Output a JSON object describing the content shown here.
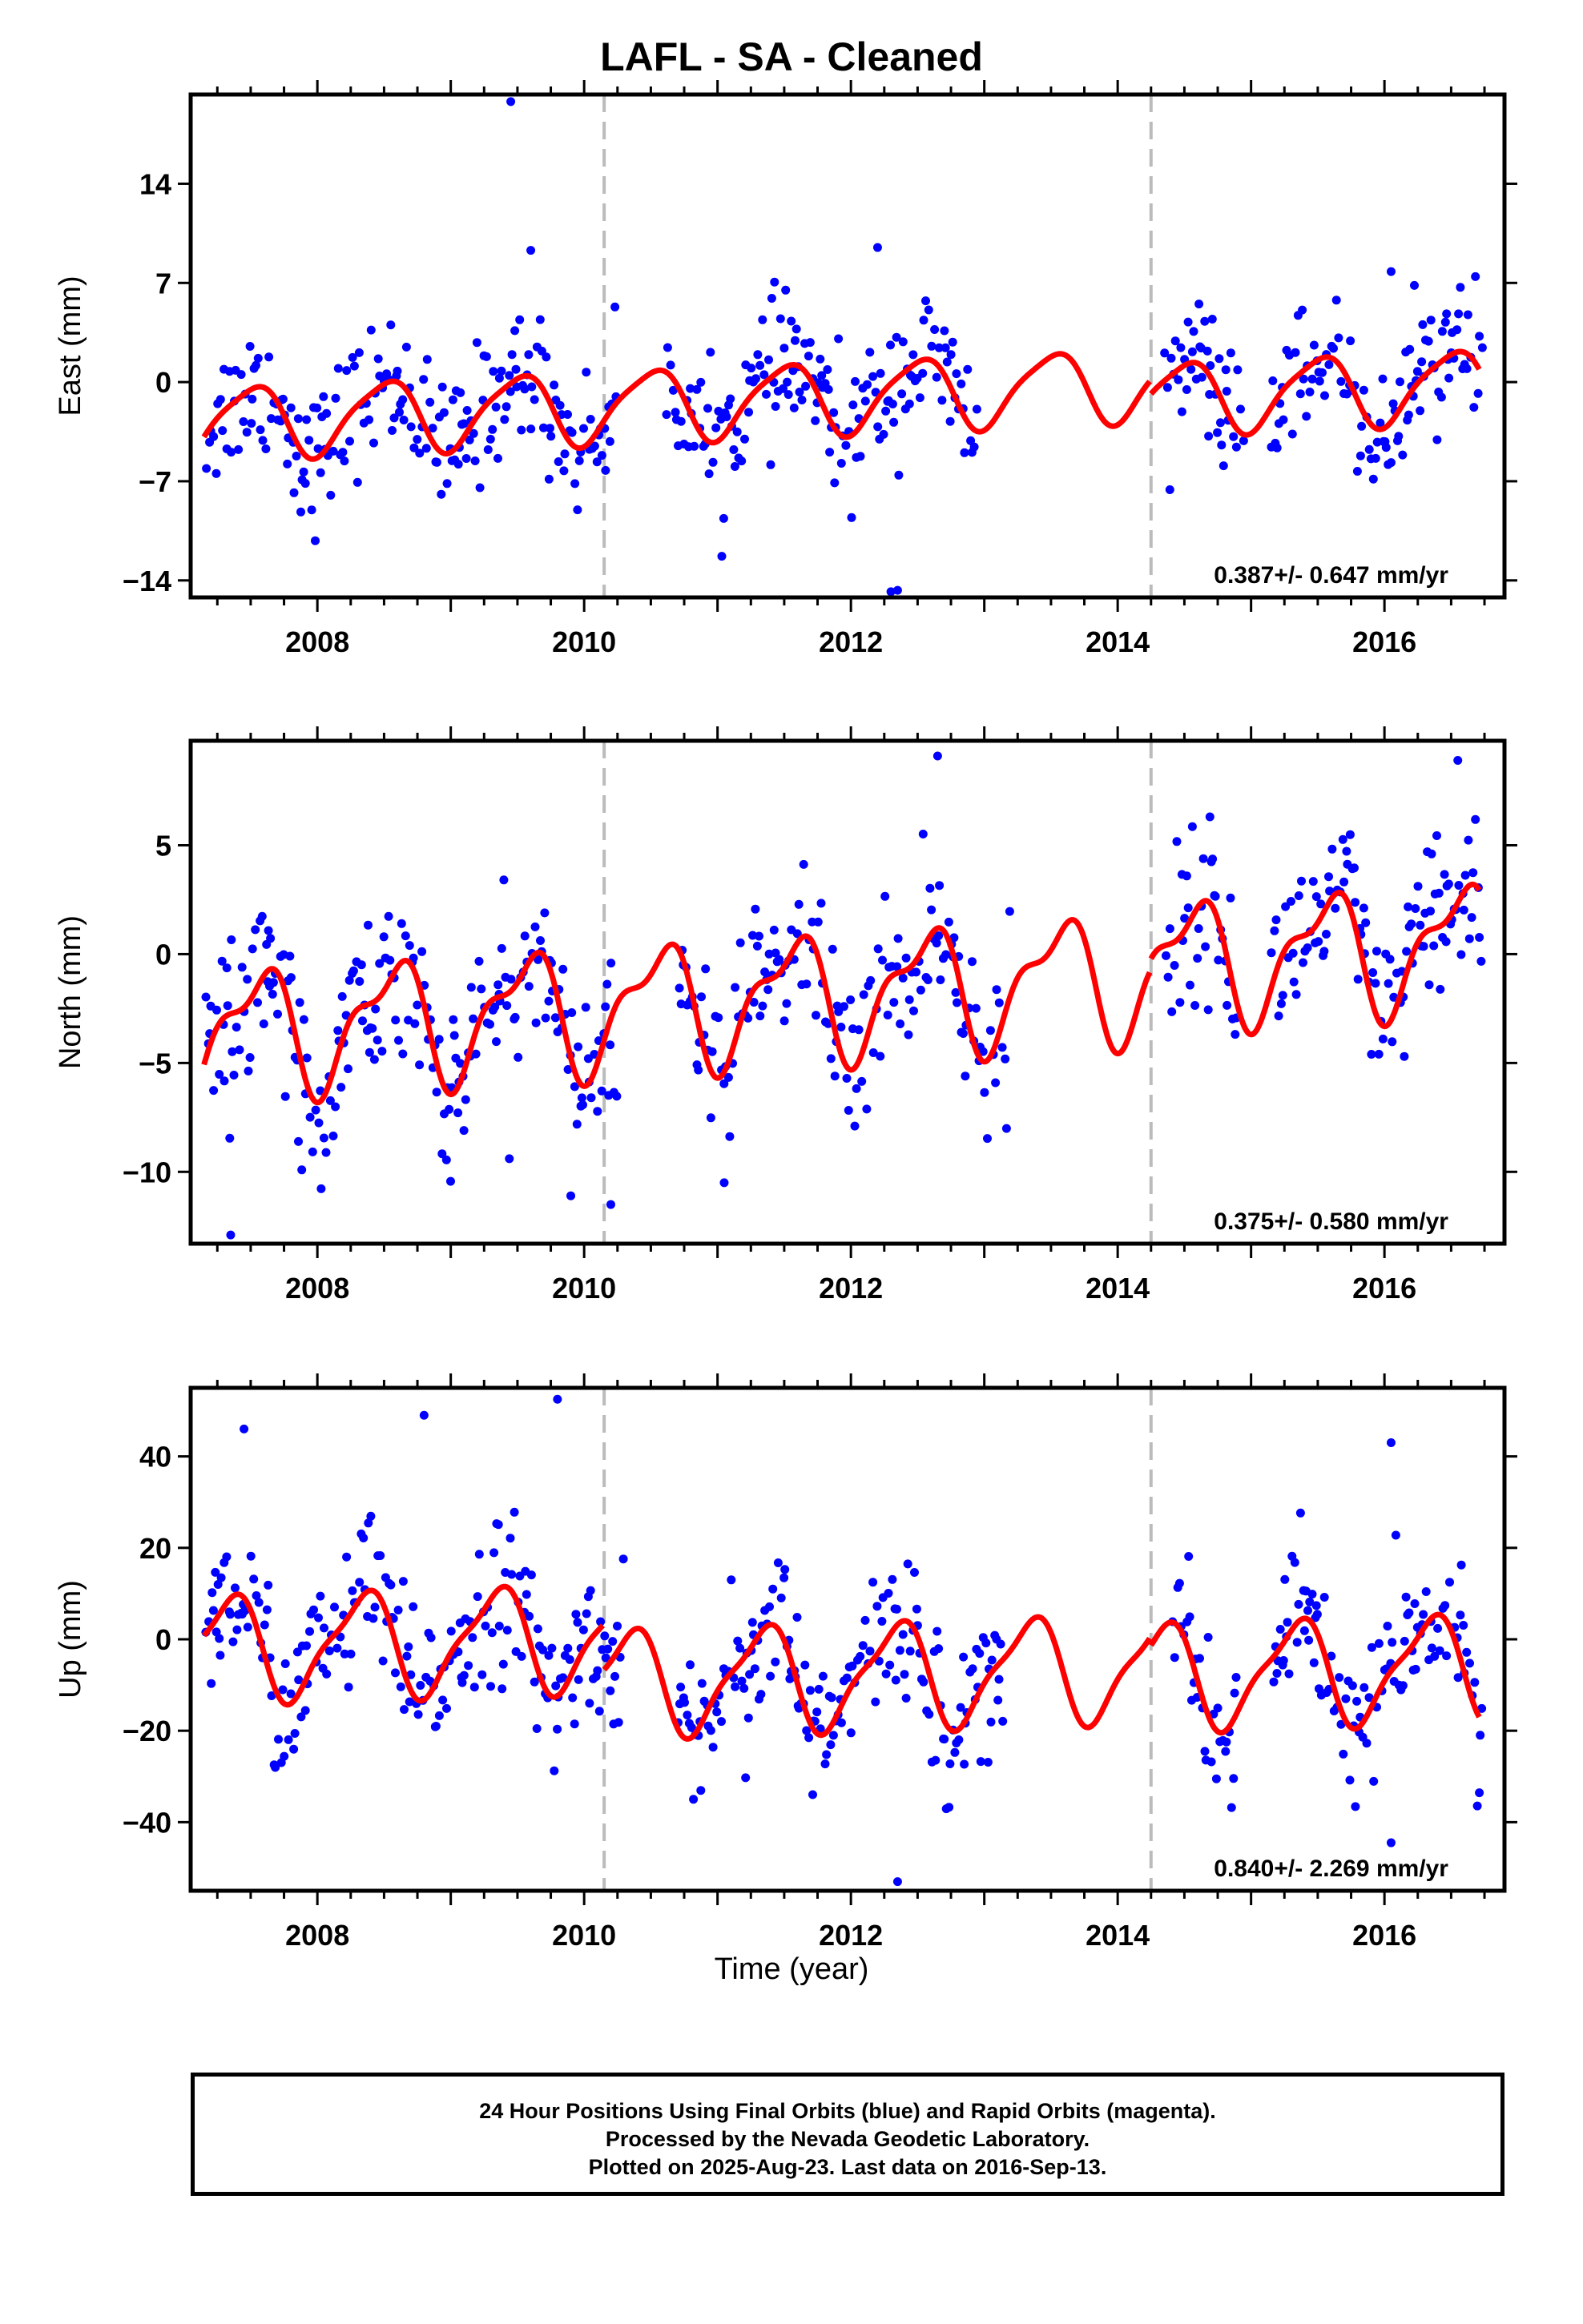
{
  "title": "LAFL  - SA - Cleaned",
  "xlabel": "Time (year)",
  "footer": {
    "line1": "24 Hour Positions Using Final Orbits (blue) and Rapid Orbits (magenta).",
    "line2": "Processed by the Nevada Geodetic Laboratory.",
    "line3": "Plotted on 2025-Aug-23. Last data on 2016-Sep-13."
  },
  "colors": {
    "final_orbits": "#0000ff",
    "model": "#ff0000",
    "event_line": "#bbbbbb",
    "frame": "#000000"
  },
  "chart_data": [
    {
      "type": "scatter",
      "ylabel": "East (mm)",
      "xlim": [
        2007.05,
        2016.9
      ],
      "ylim": [
        -15.2,
        20.3
      ],
      "yticks": [
        -14,
        -7,
        0,
        7,
        14
      ],
      "xticks": [
        2008,
        2010,
        2012,
        2014,
        2016
      ],
      "rate_label": "0.387+/- 0.647 mm/yr",
      "event_lines": [
        2010.15,
        2014.25
      ],
      "model": {
        "offset": -1.0,
        "rate": 0.387,
        "amp1": 2.5,
        "phase1": 0.25,
        "amp2": 0.5,
        "phase2": 0.55,
        "breaks": [
          2014.25
        ],
        "break_steps": [
          -1.0
        ]
      },
      "scatter_sigma": 2.4,
      "data_gaps": [
        [
          2010.25,
          2010.6
        ],
        [
          2012.95,
          2014.35
        ],
        [
          2014.95,
          2015.15
        ]
      ],
      "outliers": [
        [
          2009.45,
          19.8
        ],
        [
          2012.3,
          -14.8
        ],
        [
          2012.35,
          -14.7
        ],
        [
          2012.2,
          9.5
        ],
        [
          2009.6,
          9.3
        ],
        [
          2016.05,
          7.8
        ]
      ],
      "model_series": "Seasonal + trend fit",
      "data_series": "Final orbits"
    },
    {
      "type": "scatter",
      "ylabel": "North (mm)",
      "xlim": [
        2007.05,
        2016.9
      ],
      "ylim": [
        -13.3,
        9.8
      ],
      "yticks": [
        -10,
        -5,
        0,
        5
      ],
      "xticks": [
        2008,
        2010,
        2012,
        2014,
        2016
      ],
      "rate_label": "0.375+/- 0.580 mm/yr",
      "event_lines": [
        2010.15,
        2014.25
      ],
      "model": {
        "offset": -1.8,
        "rate": 0.375,
        "amp1": 2.6,
        "phase1": 0.3,
        "amp2": 1.1,
        "phase2": 0.6,
        "breaks": [
          2014.25
        ],
        "break_steps": [
          0.5
        ]
      },
      "scatter_sigma": 1.9,
      "data_gaps": [
        [
          2010.25,
          2010.7
        ],
        [
          2013.2,
          2014.35
        ],
        [
          2014.9,
          2015.15
        ]
      ],
      "outliers": [
        [
          2007.35,
          -12.9
        ],
        [
          2010.2,
          -11.5
        ],
        [
          2009.9,
          -11.1
        ],
        [
          2011.05,
          -10.5
        ],
        [
          2012.65,
          9.1
        ],
        [
          2016.55,
          8.9
        ]
      ],
      "model_series": "Seasonal + trend fit",
      "data_series": "Final orbits"
    },
    {
      "type": "scatter",
      "ylabel": "Up (mm)",
      "xlim": [
        2007.05,
        2016.9
      ],
      "ylim": [
        -55,
        55
      ],
      "yticks": [
        -40,
        -20,
        0,
        20,
        40
      ],
      "xticks": [
        2008,
        2010,
        2012,
        2014,
        2016
      ],
      "rate_label": "0.840+/- 2.269 mm/yr",
      "event_lines": [
        2010.15,
        2014.25
      ],
      "model": {
        "offset": 2.0,
        "rate": 0.84,
        "amp1": 11.0,
        "phase1": 0.08,
        "amp2": 3.0,
        "phase2": 0.35,
        "breaks": [
          2010.15,
          2014.25
        ],
        "break_steps": [
          -10.0,
          -2.0
        ]
      },
      "scatter_sigma": 8.5,
      "data_gaps": [
        [
          2010.3,
          2010.7
        ],
        [
          2013.15,
          2014.4
        ],
        [
          2014.9,
          2015.15
        ]
      ],
      "outliers": [
        [
          2009.8,
          52.5
        ],
        [
          2008.8,
          49.0
        ],
        [
          2007.45,
          46.0
        ],
        [
          2012.35,
          -53.0
        ],
        [
          2016.05,
          -44.5
        ],
        [
          2016.05,
          43.0
        ]
      ],
      "model_series": "Seasonal + trend fit",
      "data_series": "Final orbits"
    }
  ]
}
